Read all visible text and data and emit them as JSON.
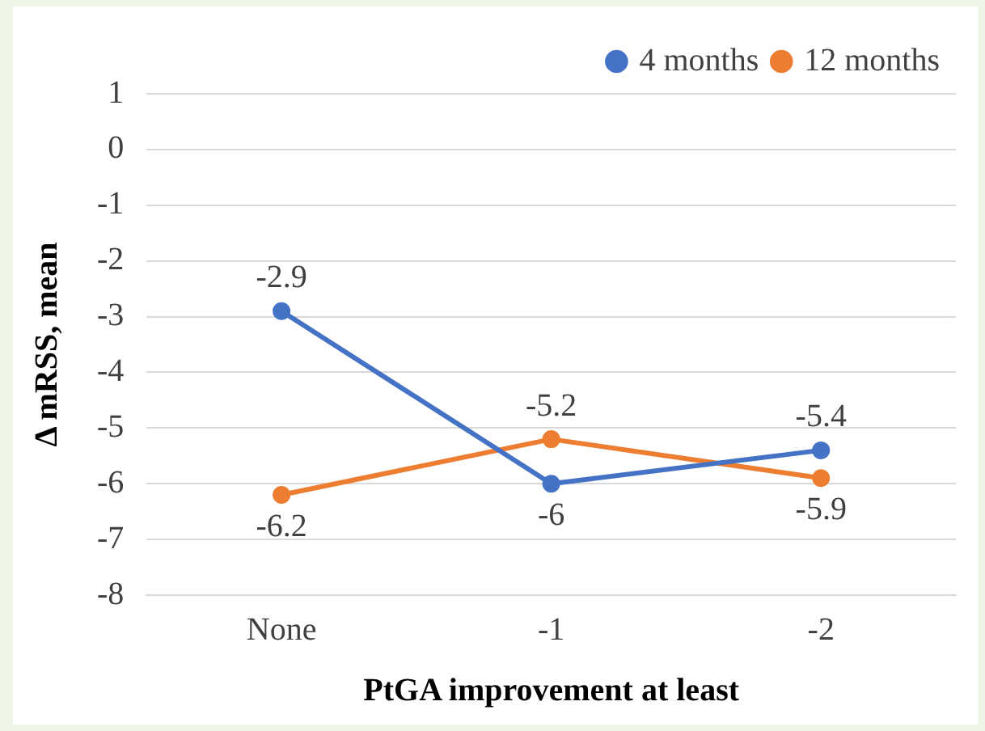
{
  "chart_data": {
    "type": "line",
    "xlabel": "PtGA improvement at least",
    "ylabel": "Δ mRSS, mean",
    "categories": [
      "None",
      "-1",
      "-2"
    ],
    "series": [
      {
        "name": "4 months",
        "color": "#4472c4",
        "values": [
          -2.9,
          -6,
          -5.4
        ]
      },
      {
        "name": "12 months",
        "color": "#ed7d31",
        "values": [
          -6.2,
          -5.2,
          -5.9
        ]
      }
    ],
    "ylim": [
      -8,
      1
    ],
    "yticks": [
      -8,
      -7,
      -6,
      -5,
      -4,
      -3,
      -2,
      -1,
      0,
      1
    ],
    "grid": "y",
    "legend": "top right",
    "marker": "circle",
    "line_style": "solid",
    "data_labels": true
  }
}
